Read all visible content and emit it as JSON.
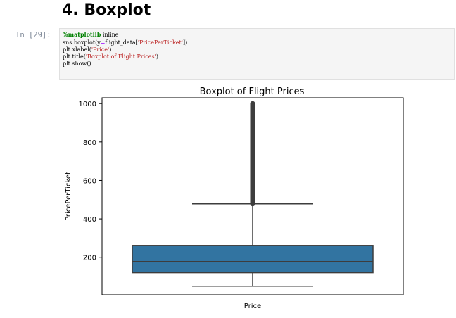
{
  "section": {
    "heading": "4. Boxplot"
  },
  "cell": {
    "prompt": "In [29]:",
    "code": {
      "line1": {
        "magic": "%matplotlib",
        "rest": " inline"
      },
      "line2": {
        "pre": "sns.boxplot(",
        "kw": "y",
        "eq": "=",
        "mid": "flight_data[",
        "str": "'PricePerTicket'",
        "post": "])"
      },
      "line3": {
        "pre": "plt.xlabel(",
        "str": "'Price'",
        "post": ")"
      },
      "line4": {
        "pre": "plt.title(",
        "str": "'Boxplot of Flight Prices'",
        "post": ")"
      },
      "line5": {
        "pre": "plt.show()"
      }
    }
  },
  "chart_data": {
    "type": "boxplot",
    "title": "Boxplot of Flight Prices",
    "xlabel": "Price",
    "ylabel": "PricePerTicket",
    "ylim": [
      5,
      1030
    ],
    "yticks": [
      "200",
      "400",
      "600",
      "800",
      "1000"
    ],
    "ytick_values": [
      200,
      400,
      600,
      800,
      1000
    ],
    "box": {
      "whisker_low": 50,
      "q1": 120,
      "median": 178,
      "q3": 262,
      "whisker_high": 478,
      "outliers_from": 478,
      "outliers_to": 1000
    },
    "colors": {
      "box": "#3274a1",
      "lines": "#3d3d3d",
      "outliers": "#3d3d3d"
    },
    "grid": false
  }
}
